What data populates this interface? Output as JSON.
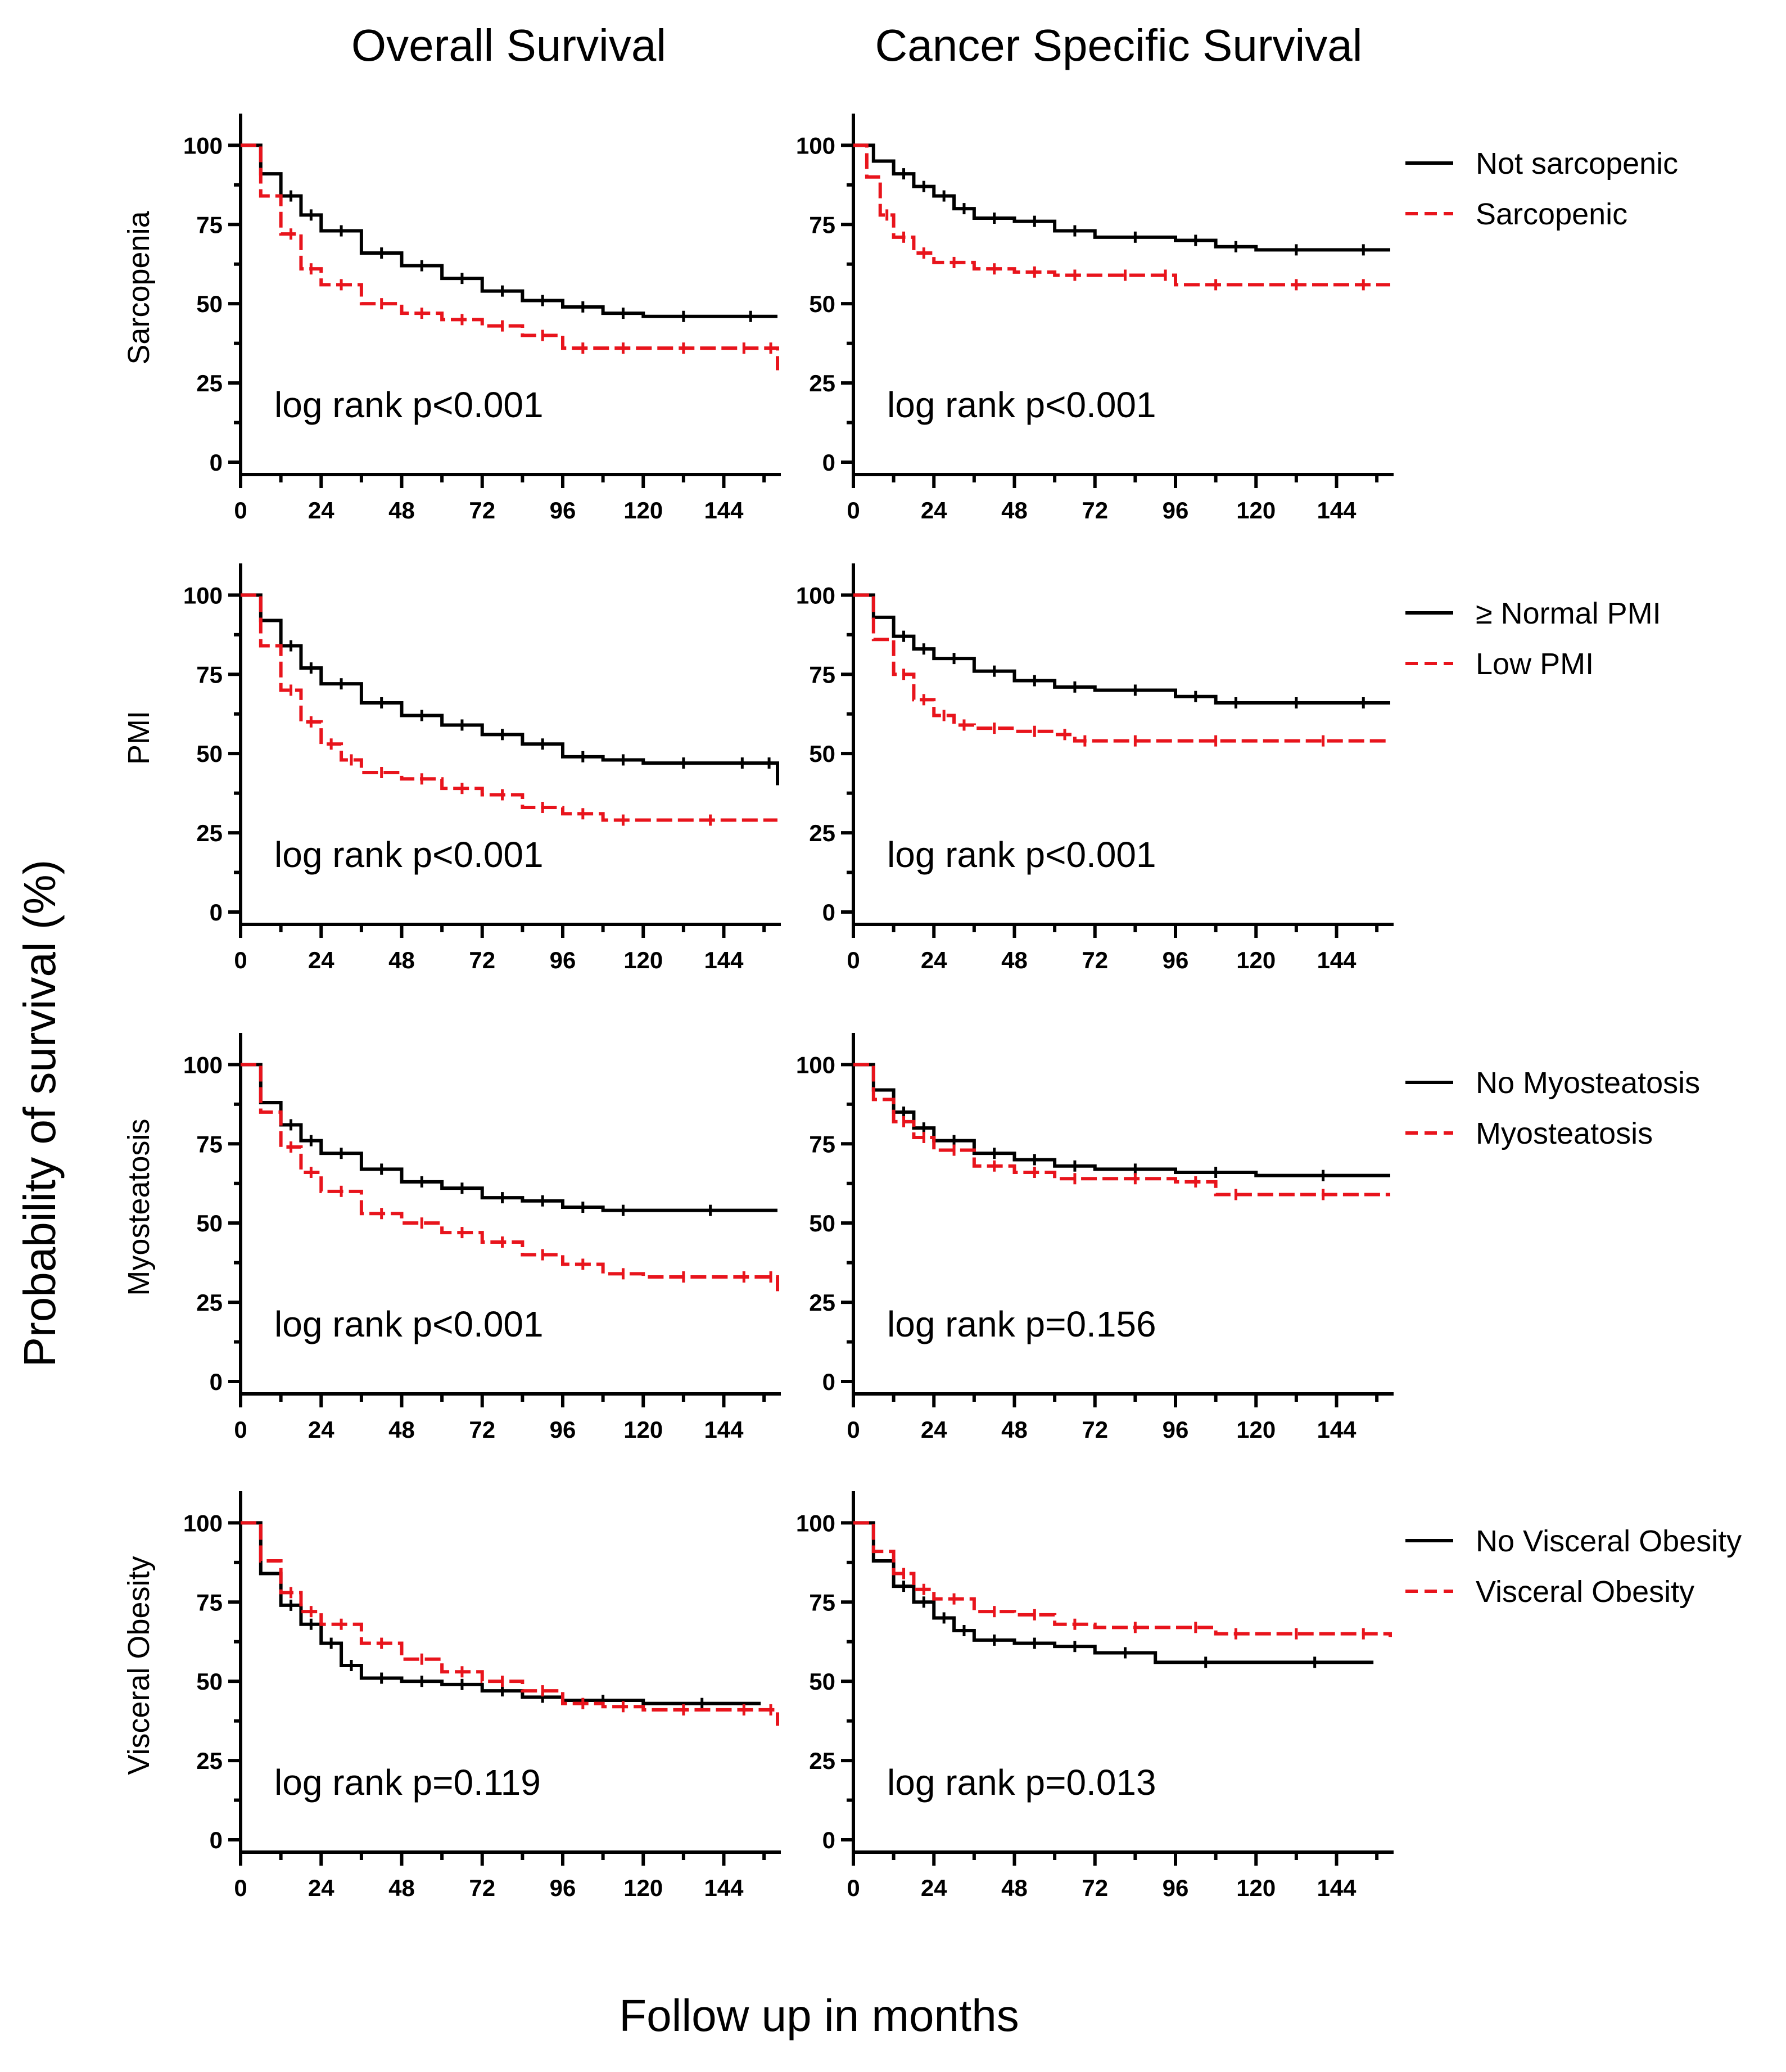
{
  "figure": {
    "column_titles": [
      "Overall Survival",
      "Cancer Specific Survival"
    ],
    "ylabel": "Probability of survival (%)",
    "xlabel": "Follow up in months",
    "colors": {
      "group_a": "#000000",
      "group_b": "#e8141c"
    }
  },
  "chart_data": [
    {
      "type": "line",
      "row": 0,
      "col": 0,
      "row_label": "Sarcopenia",
      "xlim": [
        0,
        160
      ],
      "ylim": [
        0,
        110
      ],
      "xticks": [
        0,
        24,
        48,
        72,
        96,
        120,
        144
      ],
      "yticks": [
        0,
        25,
        50,
        75,
        100
      ],
      "annotation": "log rank p<0.001",
      "series": [
        {
          "name": "Not sarcopenic",
          "style": "solid",
          "color": "#000000",
          "x": [
            0,
            6,
            12,
            18,
            24,
            36,
            48,
            60,
            72,
            84,
            96,
            108,
            120,
            144,
            160
          ],
          "y": [
            100,
            91,
            84,
            78,
            73,
            66,
            62,
            58,
            54,
            51,
            49,
            47,
            46,
            46,
            46
          ]
        },
        {
          "name": "Sarcopenic",
          "style": "dashed",
          "color": "#e8141c",
          "x": [
            0,
            6,
            12,
            18,
            24,
            36,
            48,
            60,
            72,
            84,
            96,
            108,
            120,
            144,
            156,
            160
          ],
          "y": [
            100,
            84,
            72,
            61,
            56,
            50,
            47,
            45,
            43,
            40,
            36,
            36,
            36,
            36,
            36,
            29
          ]
        }
      ]
    },
    {
      "type": "line",
      "row": 0,
      "col": 1,
      "row_label": "",
      "xlim": [
        0,
        160
      ],
      "ylim": [
        0,
        110
      ],
      "xticks": [
        0,
        24,
        48,
        72,
        96,
        120,
        144
      ],
      "yticks": [
        0,
        25,
        50,
        75,
        100
      ],
      "annotation": "log rank p<0.001",
      "legend": [
        "Not sarcopenic",
        "Sarcopenic"
      ],
      "series": [
        {
          "name": "Not sarcopenic",
          "style": "solid",
          "color": "#000000",
          "x": [
            0,
            6,
            12,
            18,
            24,
            30,
            36,
            48,
            60,
            72,
            96,
            108,
            120,
            144,
            160
          ],
          "y": [
            100,
            95,
            91,
            87,
            84,
            80,
            77,
            76,
            73,
            71,
            70,
            68,
            67,
            67,
            67
          ]
        },
        {
          "name": "Sarcopenic",
          "style": "dashed",
          "color": "#e8141c",
          "x": [
            0,
            4,
            8,
            12,
            18,
            24,
            36,
            48,
            60,
            72,
            90,
            96,
            120,
            144,
            160
          ],
          "y": [
            100,
            90,
            78,
            71,
            66,
            63,
            61,
            60,
            59,
            59,
            59,
            56,
            56,
            56,
            56
          ]
        }
      ]
    },
    {
      "type": "line",
      "row": 1,
      "col": 0,
      "row_label": "PMI",
      "xlim": [
        0,
        160
      ],
      "ylim": [
        0,
        110
      ],
      "xticks": [
        0,
        24,
        48,
        72,
        96,
        120,
        144
      ],
      "yticks": [
        0,
        25,
        50,
        75,
        100
      ],
      "annotation": "log rank p<0.001",
      "series": [
        {
          "name": "≥ Normal PMI",
          "style": "solid",
          "color": "#000000",
          "x": [
            0,
            6,
            12,
            18,
            24,
            36,
            48,
            60,
            72,
            84,
            96,
            108,
            120,
            144,
            155,
            160
          ],
          "y": [
            100,
            92,
            84,
            77,
            72,
            66,
            62,
            59,
            56,
            53,
            49,
            48,
            47,
            47,
            47,
            40
          ]
        },
        {
          "name": "Low PMI",
          "style": "dashed",
          "color": "#e8141c",
          "x": [
            0,
            6,
            12,
            18,
            24,
            30,
            36,
            48,
            60,
            72,
            84,
            96,
            108,
            120,
            160
          ],
          "y": [
            100,
            84,
            70,
            60,
            53,
            48,
            44,
            42,
            39,
            37,
            33,
            31,
            29,
            29,
            29
          ]
        }
      ]
    },
    {
      "type": "line",
      "row": 1,
      "col": 1,
      "row_label": "",
      "xlim": [
        0,
        160
      ],
      "ylim": [
        0,
        110
      ],
      "xticks": [
        0,
        24,
        48,
        72,
        96,
        120,
        144
      ],
      "yticks": [
        0,
        25,
        50,
        75,
        100
      ],
      "annotation": "log rank p<0.001",
      "legend": [
        "≥ Normal PMI",
        "Low PMI"
      ],
      "series": [
        {
          "name": "≥ Normal PMI",
          "style": "solid",
          "color": "#000000",
          "x": [
            0,
            6,
            12,
            18,
            24,
            36,
            48,
            60,
            72,
            96,
            108,
            120,
            144,
            160
          ],
          "y": [
            100,
            93,
            87,
            83,
            80,
            76,
            73,
            71,
            70,
            68,
            66,
            66,
            66,
            66
          ]
        },
        {
          "name": "Low PMI",
          "style": "dashed",
          "color": "#e8141c",
          "x": [
            0,
            6,
            12,
            18,
            24,
            30,
            36,
            48,
            60,
            66,
            72,
            96,
            120,
            160
          ],
          "y": [
            100,
            86,
            75,
            67,
            62,
            59,
            58,
            57,
            56,
            54,
            54,
            54,
            54,
            54
          ]
        }
      ]
    },
    {
      "type": "line",
      "row": 2,
      "col": 0,
      "row_label": "Myosteatosis",
      "xlim": [
        0,
        160
      ],
      "ylim": [
        0,
        110
      ],
      "xticks": [
        0,
        24,
        48,
        72,
        96,
        120,
        144
      ],
      "yticks": [
        0,
        25,
        50,
        75,
        100
      ],
      "annotation": "log rank p<0.001",
      "series": [
        {
          "name": "No Myosteatosis",
          "style": "solid",
          "color": "#000000",
          "x": [
            0,
            6,
            12,
            18,
            24,
            36,
            48,
            60,
            72,
            84,
            96,
            108,
            120,
            160
          ],
          "y": [
            100,
            88,
            81,
            76,
            72,
            67,
            63,
            61,
            58,
            57,
            55,
            54,
            54,
            54
          ]
        },
        {
          "name": "Myosteatosis",
          "style": "dashed",
          "color": "#e8141c",
          "x": [
            0,
            6,
            12,
            18,
            24,
            36,
            48,
            60,
            72,
            84,
            96,
            108,
            120,
            144,
            156,
            160
          ],
          "y": [
            100,
            85,
            74,
            66,
            60,
            53,
            50,
            47,
            44,
            40,
            37,
            34,
            33,
            33,
            33,
            28
          ]
        }
      ]
    },
    {
      "type": "line",
      "row": 2,
      "col": 1,
      "row_label": "",
      "xlim": [
        0,
        160
      ],
      "ylim": [
        0,
        110
      ],
      "xticks": [
        0,
        24,
        48,
        72,
        96,
        120,
        144
      ],
      "yticks": [
        0,
        25,
        50,
        75,
        100
      ],
      "annotation": "log rank p=0.156",
      "legend": [
        "No Myosteatosis",
        "Myosteatosis"
      ],
      "series": [
        {
          "name": "No Myosteatosis",
          "style": "solid",
          "color": "#000000",
          "x": [
            0,
            6,
            12,
            18,
            24,
            36,
            48,
            60,
            72,
            96,
            120,
            160
          ],
          "y": [
            100,
            92,
            85,
            80,
            76,
            72,
            70,
            68,
            67,
            66,
            65,
            65
          ]
        },
        {
          "name": "Myosteatosis",
          "style": "dashed",
          "color": "#e8141c",
          "x": [
            0,
            6,
            12,
            18,
            24,
            36,
            48,
            60,
            72,
            96,
            108,
            120,
            160
          ],
          "y": [
            100,
            89,
            82,
            77,
            73,
            68,
            66,
            64,
            64,
            63,
            59,
            59,
            59
          ]
        }
      ]
    },
    {
      "type": "line",
      "row": 3,
      "col": 0,
      "row_label": "Visceral Obesity",
      "xlim": [
        0,
        160
      ],
      "ylim": [
        0,
        110
      ],
      "xticks": [
        0,
        24,
        48,
        72,
        96,
        120,
        144
      ],
      "yticks": [
        0,
        25,
        50,
        75,
        100
      ],
      "annotation": "log rank p=0.119",
      "series": [
        {
          "name": "No Visceral Obesity",
          "style": "solid",
          "color": "#000000",
          "x": [
            0,
            6,
            12,
            18,
            24,
            30,
            36,
            48,
            60,
            72,
            84,
            96,
            120,
            155
          ],
          "y": [
            100,
            84,
            74,
            68,
            62,
            55,
            51,
            50,
            49,
            47,
            45,
            44,
            43,
            43
          ]
        },
        {
          "name": "Visceral Obesity",
          "style": "dashed",
          "color": "#e8141c",
          "x": [
            0,
            6,
            12,
            18,
            24,
            36,
            48,
            60,
            72,
            84,
            96,
            108,
            120,
            144,
            156,
            160
          ],
          "y": [
            100,
            88,
            78,
            72,
            68,
            62,
            57,
            53,
            50,
            47,
            43,
            42,
            41,
            41,
            41,
            36
          ]
        }
      ]
    },
    {
      "type": "line",
      "row": 3,
      "col": 1,
      "row_label": "",
      "xlim": [
        0,
        160
      ],
      "ylim": [
        0,
        110
      ],
      "xticks": [
        0,
        24,
        48,
        72,
        96,
        120,
        144
      ],
      "yticks": [
        0,
        25,
        50,
        75,
        100
      ],
      "annotation": "log rank p=0.013",
      "legend": [
        "No Visceral Obesity",
        "Visceral Obesity"
      ],
      "series": [
        {
          "name": "No Visceral Obesity",
          "style": "solid",
          "color": "#000000",
          "x": [
            0,
            6,
            12,
            18,
            24,
            30,
            36,
            48,
            60,
            72,
            90,
            120,
            155
          ],
          "y": [
            100,
            88,
            80,
            75,
            70,
            66,
            63,
            62,
            61,
            59,
            56,
            56,
            56
          ]
        },
        {
          "name": "Visceral Obesity",
          "style": "dashed",
          "color": "#e8141c",
          "x": [
            0,
            6,
            12,
            18,
            24,
            36,
            48,
            60,
            72,
            96,
            108,
            120,
            144,
            160
          ],
          "y": [
            100,
            91,
            84,
            79,
            76,
            72,
            71,
            68,
            67,
            67,
            65,
            65,
            65,
            64
          ]
        }
      ]
    }
  ]
}
